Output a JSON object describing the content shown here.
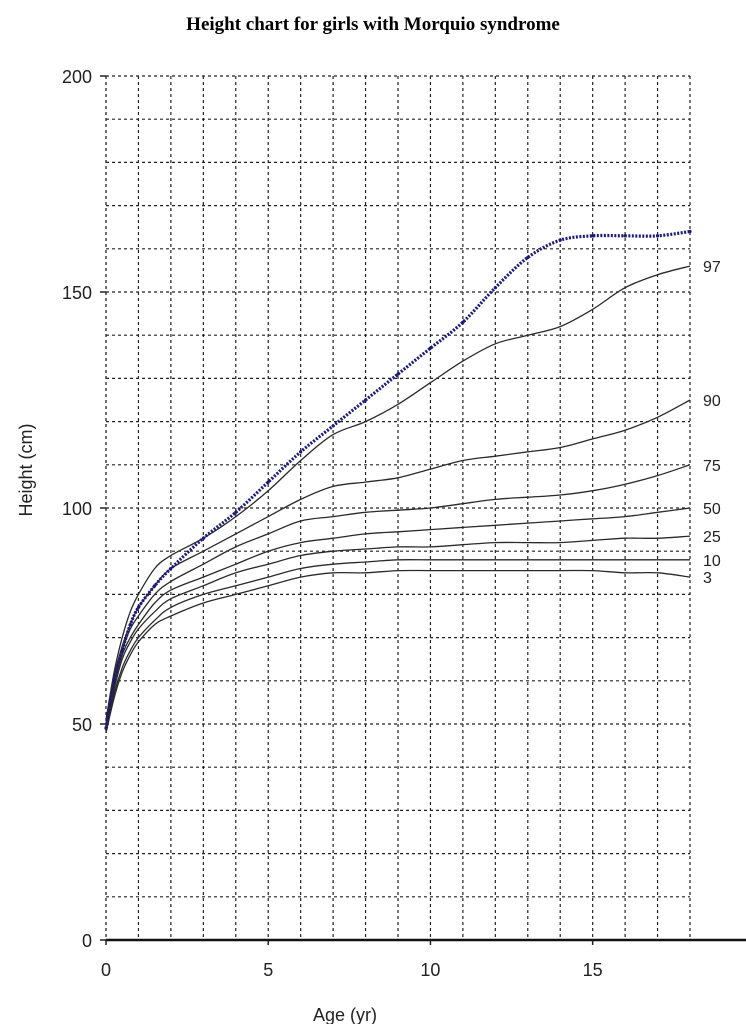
{
  "chart_data": {
    "type": "line",
    "title": "Height chart for girls with Morquio syndrome",
    "xlabel": "Age (yr)",
    "ylabel": "Height (cm)",
    "xlim": [
      0,
      18
    ],
    "ylim": [
      0,
      200
    ],
    "x_ticks": [
      0,
      5,
      10,
      15
    ],
    "y_ticks": [
      0,
      50,
      100,
      150,
      200
    ],
    "grid": true,
    "grid_x_step": 1,
    "grid_y_step": 10,
    "grid_style": "dashed",
    "colors": {
      "percentile_line": "#2a2a2a",
      "highlight": "#1a1a7a",
      "grid": "#222222"
    },
    "percentile_series": [
      {
        "name": "97",
        "x": [
          0,
          0.25,
          0.5,
          0.75,
          1,
          1.5,
          2,
          3,
          4,
          5,
          6,
          7,
          8,
          9,
          10,
          11,
          12,
          13,
          14,
          15,
          16,
          17,
          18
        ],
        "y": [
          51,
          62,
          70,
          76,
          80,
          86,
          89,
          93,
          98,
          104,
          111,
          117,
          120,
          124,
          129,
          134,
          138,
          140,
          142,
          146,
          151,
          154,
          156
        ]
      },
      {
        "name": "90",
        "x": [
          0,
          0.25,
          0.5,
          0.75,
          1,
          1.5,
          2,
          3,
          4,
          5,
          6,
          7,
          8,
          9,
          10,
          11,
          12,
          13,
          14,
          15,
          16,
          17,
          18
        ],
        "y": [
          50,
          61,
          68,
          73,
          77,
          82,
          86,
          90,
          94,
          98,
          102,
          105,
          106,
          107,
          109,
          111,
          112,
          113,
          114,
          116,
          118,
          121,
          125
        ]
      },
      {
        "name": "75",
        "x": [
          0,
          0.25,
          0.5,
          0.75,
          1,
          1.5,
          2,
          3,
          4,
          5,
          6,
          7,
          8,
          9,
          10,
          11,
          12,
          13,
          14,
          15,
          16,
          17,
          18
        ],
        "y": [
          50,
          60,
          67,
          72,
          75,
          80,
          83,
          87,
          91,
          94,
          97,
          98,
          99,
          99.5,
          100,
          101,
          102,
          102.5,
          103,
          104,
          105.5,
          107.5,
          110
        ]
      },
      {
        "name": "50",
        "x": [
          0,
          0.25,
          0.5,
          0.75,
          1,
          1.5,
          2,
          3,
          4,
          5,
          6,
          7,
          8,
          9,
          10,
          11,
          12,
          13,
          14,
          15,
          16,
          17,
          18
        ],
        "y": [
          49,
          59,
          66,
          70,
          73,
          78,
          81,
          84,
          87,
          90,
          92,
          93,
          94,
          94.5,
          95,
          95.5,
          96,
          96.5,
          97,
          97.5,
          98,
          99,
          100
        ]
      },
      {
        "name": "25",
        "x": [
          0,
          0.25,
          0.5,
          0.75,
          1,
          1.5,
          2,
          3,
          4,
          5,
          6,
          7,
          8,
          9,
          10,
          11,
          12,
          13,
          14,
          15,
          16,
          17,
          18
        ],
        "y": [
          49,
          58,
          65,
          69,
          72,
          76,
          79,
          82,
          85,
          87,
          89,
          90,
          90.5,
          91,
          91,
          91.5,
          92,
          92,
          92,
          92.5,
          93,
          93,
          93.5
        ]
      },
      {
        "name": "10",
        "x": [
          0,
          0.25,
          0.5,
          0.75,
          1,
          1.5,
          2,
          3,
          4,
          5,
          6,
          7,
          8,
          9,
          10,
          11,
          12,
          13,
          14,
          15,
          16,
          17,
          18
        ],
        "y": [
          48,
          57,
          63,
          67,
          70,
          74,
          77,
          80,
          82,
          84,
          86,
          87,
          87.5,
          88,
          88,
          88,
          88,
          88,
          88,
          88,
          88,
          88,
          88
        ]
      },
      {
        "name": "3",
        "x": [
          0,
          0.25,
          0.5,
          0.75,
          1,
          1.5,
          2,
          3,
          4,
          5,
          6,
          7,
          8,
          9,
          10,
          11,
          12,
          13,
          14,
          15,
          16,
          17,
          18
        ],
        "y": [
          48,
          56,
          62,
          66,
          69,
          73,
          75,
          78,
          80,
          82,
          84,
          85,
          85,
          85.5,
          85.5,
          85.5,
          85.5,
          85.5,
          85.5,
          85.5,
          85,
          85,
          84
        ]
      }
    ],
    "highlight_series": {
      "x": [
        0,
        0.25,
        0.5,
        0.75,
        1,
        1.5,
        2,
        3,
        4,
        5,
        6,
        7,
        8,
        9,
        10,
        11,
        12,
        13,
        14,
        15,
        16,
        17,
        18
      ],
      "y": [
        49,
        60,
        67,
        73,
        77,
        82,
        86,
        93,
        99,
        106,
        113,
        119,
        125,
        131,
        137,
        143,
        151,
        158,
        162,
        163,
        163,
        163,
        164
      ]
    }
  }
}
